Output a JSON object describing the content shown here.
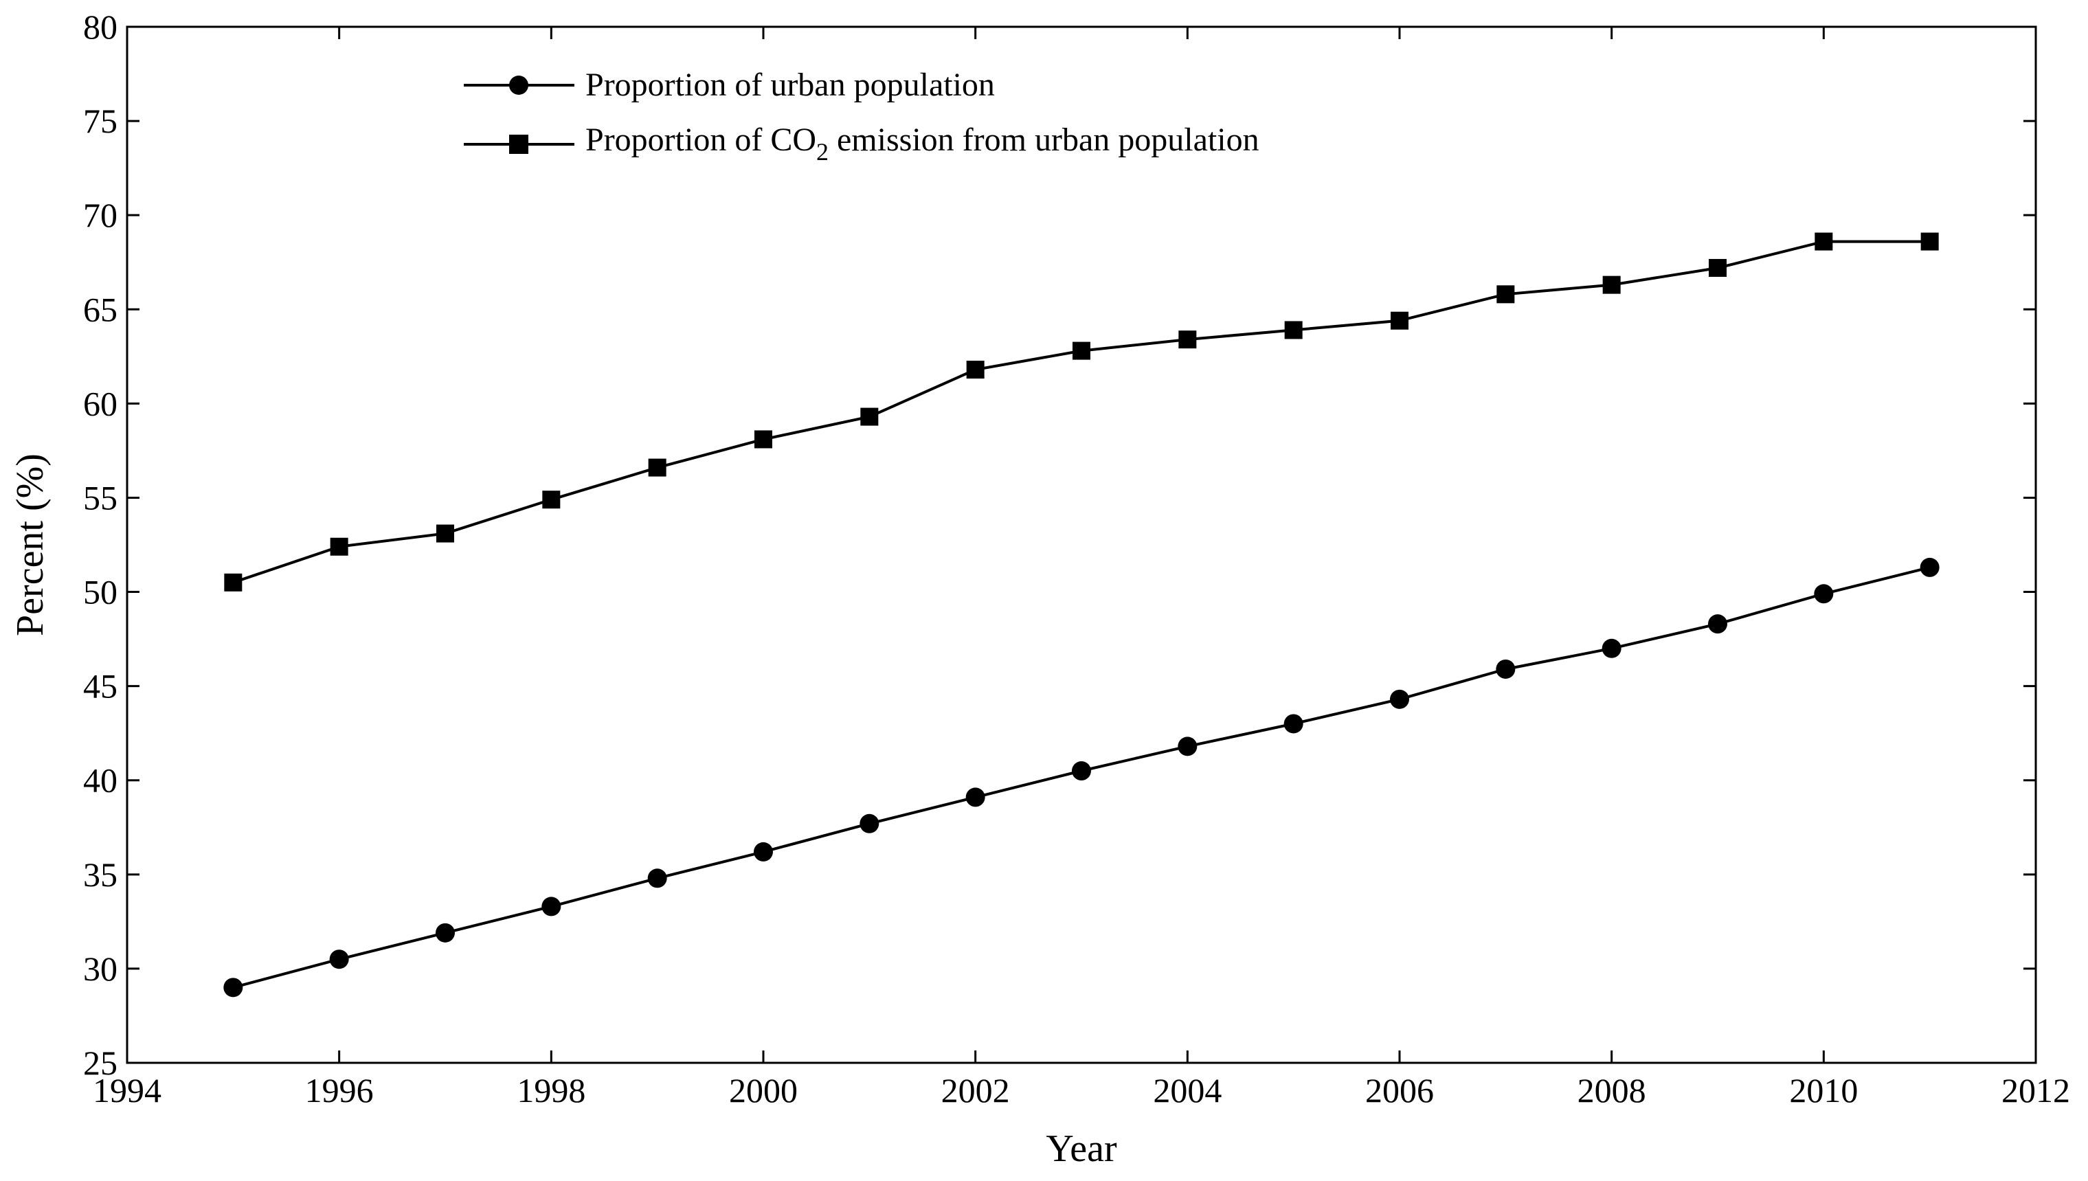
{
  "chart_data": {
    "type": "line",
    "title": "",
    "xlabel": "Year",
    "ylabel": "Percent (%)",
    "xlim": [
      1994,
      2012
    ],
    "ylim": [
      25,
      80
    ],
    "xticks": [
      "1994",
      "1996",
      "1998",
      "2000",
      "2002",
      "2004",
      "2006",
      "2008",
      "2010",
      "2012"
    ],
    "yticks": [
      "25",
      "30",
      "35",
      "40",
      "45",
      "50",
      "55",
      "60",
      "65",
      "70",
      "75",
      "80"
    ],
    "grid": false,
    "legend_position": "top-left",
    "x": [
      1995,
      1996,
      1997,
      1998,
      1999,
      2000,
      2001,
      2002,
      2003,
      2004,
      2005,
      2006,
      2007,
      2008,
      2009,
      2010,
      2011
    ],
    "series": [
      {
        "name": "Proportion of urban population",
        "marker": "circle",
        "color": "#000000",
        "values": [
          29.0,
          30.5,
          31.9,
          33.3,
          34.8,
          36.2,
          37.7,
          39.1,
          40.5,
          41.8,
          43.0,
          44.3,
          45.9,
          47.0,
          48.3,
          49.9,
          51.3
        ]
      },
      {
        "name_parts": [
          "Proportion of CO",
          "2",
          " emission from urban population"
        ],
        "name": "Proportion of CO2 emission from urban population",
        "marker": "square",
        "color": "#000000",
        "values": [
          50.5,
          52.4,
          53.1,
          54.9,
          56.6,
          58.1,
          59.3,
          61.8,
          62.8,
          63.4,
          63.9,
          64.4,
          65.8,
          66.3,
          67.2,
          68.6,
          68.6
        ]
      }
    ]
  }
}
